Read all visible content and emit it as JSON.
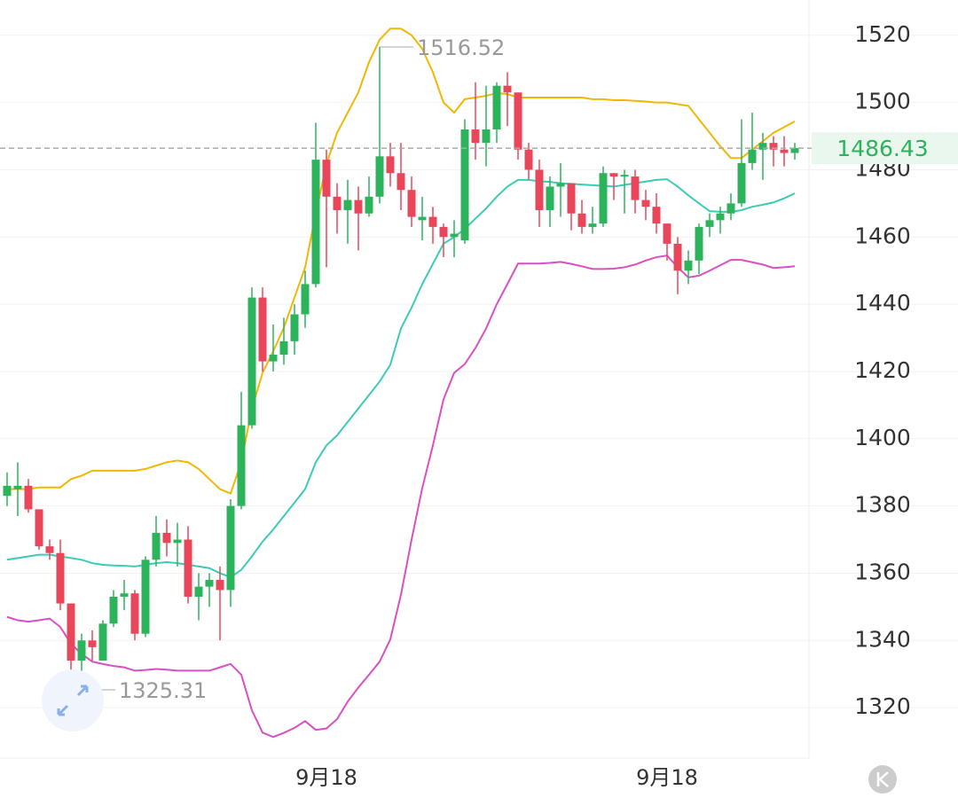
{
  "chart_data": {
    "type": "candlestick",
    "open": [
      1383,
      1385,
      1386,
      1379,
      1368,
      1366,
      1351,
      1334,
      1340,
      1334,
      1345,
      1353,
      1354,
      1342,
      1364,
      1372,
      1369,
      1370,
      1353,
      1356,
      1358,
      1355,
      1380,
      1404,
      1442,
      1423,
      1425,
      1429,
      1437,
      1446,
      1483,
      1472,
      1468,
      1471,
      1467,
      1472,
      1484,
      1479,
      1474,
      1465,
      1466,
      1463,
      1460,
      1459,
      1492,
      1488,
      1492,
      1505,
      1503,
      1486,
      1480,
      1468,
      1475,
      1476,
      1467,
      1463,
      1464,
      1479,
      1478,
      1478,
      1471,
      1469,
      1464,
      1458,
      1450,
      1453,
      1463,
      1465,
      1467,
      1470,
      1482,
      1486,
      1488,
      1486,
      1485
    ],
    "high": [
      1390,
      1393,
      1388,
      1379,
      1370,
      1370,
      1351,
      1342,
      1343,
      1346,
      1355,
      1358,
      1355,
      1365,
      1377,
      1376,
      1375,
      1374,
      1360,
      1360,
      1362,
      1382,
      1414,
      1445,
      1445,
      1434,
      1436,
      1440,
      1450,
      1494,
      1486,
      1476,
      1477,
      1475,
      1478,
      1516.52,
      1488,
      1488,
      1478,
      1472,
      1469,
      1464,
      1465,
      1495,
      1506,
      1505,
      1506,
      1509,
      1503,
      1488,
      1483,
      1478,
      1482,
      1476,
      1471,
      1469,
      1481,
      1479,
      1480,
      1480,
      1474,
      1473,
      1464,
      1460,
      1456,
      1464,
      1467,
      1469,
      1473,
      1495,
      1497,
      1491,
      1490,
      1490,
      1488
    ],
    "low": [
      1380,
      1377,
      1378,
      1367,
      1364,
      1349,
      1331,
      1325.31,
      1334,
      1334,
      1344,
      1349,
      1340,
      1341,
      1362,
      1365,
      1362,
      1351,
      1346,
      1350,
      1340,
      1350,
      1379,
      1403,
      1420,
      1420,
      1422,
      1425,
      1433,
      1445,
      1451,
      1461,
      1458,
      1456,
      1466,
      1470,
      1475,
      1468,
      1463,
      1459,
      1458,
      1454,
      1454,
      1458,
      1483,
      1481,
      1488,
      1493,
      1483,
      1477,
      1463,
      1463,
      1466,
      1462,
      1461,
      1461,
      1463,
      1471,
      1467,
      1467,
      1465,
      1461,
      1453,
      1443,
      1446,
      1449,
      1460,
      1461,
      1465,
      1469,
      1480,
      1477,
      1481,
      1481,
      1483
    ],
    "close": [
      1386,
      1386,
      1379,
      1368,
      1366,
      1351,
      1334,
      1340,
      1338,
      1345,
      1353,
      1354,
      1342,
      1364,
      1372,
      1369,
      1370,
      1353,
      1356,
      1358,
      1355,
      1380,
      1404,
      1442,
      1423,
      1425,
      1429,
      1437,
      1446,
      1483,
      1472,
      1468,
      1471,
      1467,
      1472,
      1484,
      1479,
      1474,
      1466,
      1466,
      1463,
      1460,
      1461,
      1492,
      1488,
      1492,
      1505,
      1503,
      1486,
      1480,
      1468,
      1475,
      1476,
      1467,
      1463,
      1464,
      1479,
      1478,
      1478.5,
      1471,
      1469,
      1464,
      1458,
      1450,
      1453,
      1463,
      1465,
      1467,
      1470,
      1482,
      1486,
      1488,
      1486,
      1485,
      1486.43
    ],
    "up_color": "#2db35b",
    "down_color": "#e8475b",
    "overlays": [
      {
        "color": "#f2b705",
        "values": [
          1385,
          1385,
          1385,
          1385.5,
          1385.5,
          1385.5,
          1388,
          1389,
          1390.5,
          1390.5,
          1390.5,
          1390.5,
          1390.5,
          1391,
          1392,
          1393,
          1393.5,
          1393,
          1391,
          1388,
          1385,
          1383.7,
          1393,
          1409,
          1419.6,
          1426,
          1433,
          1442,
          1451,
          1467,
          1481.7,
          1491,
          1497,
          1503,
          1512,
          1518.7,
          1522,
          1522,
          1520,
          1516,
          1509,
          1500,
          1497,
          1501,
          1501.5,
          1502,
          1502.8,
          1502.5,
          1501.5,
          1501.5,
          1501.5,
          1501.5,
          1501.5,
          1501.5,
          1501.5,
          1501,
          1501,
          1500.7,
          1500.7,
          1500.5,
          1500.3,
          1500,
          1500,
          1499.5,
          1499,
          1495,
          1491,
          1487,
          1483.5,
          1483.5,
          1486,
          1488.5,
          1491,
          1492.7,
          1494.4
        ]
      },
      {
        "color": "#3ccbb4",
        "values": [
          1364,
          1364.5,
          1365,
          1365.5,
          1365.5,
          1365,
          1364.5,
          1364,
          1363,
          1362.5,
          1362.3,
          1362.2,
          1362,
          1362.5,
          1363,
          1363.3,
          1363,
          1362.5,
          1362,
          1361.5,
          1360,
          1358.8,
          1361,
          1365,
          1369.4,
          1373,
          1377,
          1381,
          1385,
          1393,
          1398,
          1401,
          1405,
          1409,
          1413,
          1417,
          1422,
          1432.8,
          1439,
          1446,
          1452,
          1458,
          1460,
          1462.4,
          1465.5,
          1468.5,
          1472,
          1475,
          1477,
          1477,
          1476.6,
          1476.4,
          1476,
          1475.8,
          1475.6,
          1475.4,
          1475.2,
          1475,
          1475.5,
          1476,
          1476.5,
          1477,
          1477.2,
          1475,
          1472.4,
          1470,
          1467.7,
          1467.5,
          1467.5,
          1468,
          1469,
          1469.6,
          1470.3,
          1471.5,
          1473
        ]
      },
      {
        "color": "#d94fc4",
        "values": [
          1347,
          1346,
          1345.6,
          1346,
          1346.5,
          1344,
          1339,
          1336,
          1333.7,
          1333,
          1332.4,
          1332,
          1331,
          1331.2,
          1331.5,
          1331.3,
          1331,
          1331,
          1331,
          1331,
          1332,
          1333,
          1329.8,
          1319.2,
          1312.6,
          1311.3,
          1312.5,
          1314,
          1316,
          1313.4,
          1313.8,
          1316.6,
          1321.8,
          1326,
          1329.8,
          1333.7,
          1340.3,
          1353.6,
          1370,
          1385.3,
          1398,
          1411.7,
          1419.6,
          1422.2,
          1427,
          1432.8,
          1440,
          1446,
          1452.1,
          1452.1,
          1452.1,
          1452.3,
          1452.6,
          1452,
          1451.3,
          1450.5,
          1450.5,
          1450.6,
          1451,
          1451.8,
          1453,
          1454,
          1454.5,
          1451,
          1448,
          1448.5,
          1450,
          1451.6,
          1453.2,
          1453.2,
          1452.5,
          1451.8,
          1450.8,
          1451,
          1451.3
        ]
      }
    ],
    "xticks": [
      {
        "value": 30,
        "label": "9月18"
      },
      {
        "value": 62,
        "label": "9月18"
      }
    ],
    "ylim": [
      1305,
      1530.5
    ],
    "yticks": [
      1320,
      1340,
      1360,
      1380,
      1400,
      1420,
      1440,
      1460,
      1480,
      1500,
      1520
    ],
    "grid": true,
    "max_index": 35,
    "min_index": 7
  }
}
